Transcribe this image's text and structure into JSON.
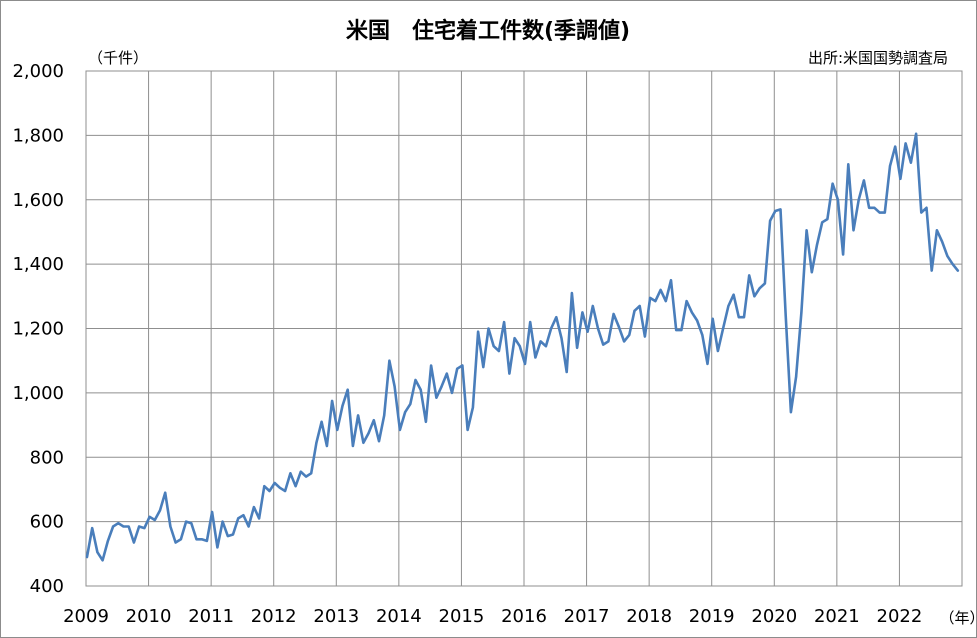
{
  "chart_data": {
    "type": "line",
    "title": "米国　住宅着工件数(季調値)",
    "unit_label": "（千件）",
    "source": "出所:米国国勢調査局",
    "x_unit": "（年）",
    "ylim": [
      400,
      2000
    ],
    "y_ticks": [
      "2,000",
      "1,800",
      "1,600",
      "1,400",
      "1,200",
      "1,000",
      "800",
      "600",
      "400"
    ],
    "x_ticks": [
      "2009",
      "2010",
      "2011",
      "2012",
      "2013",
      "2014",
      "2015",
      "2016",
      "2017",
      "2018",
      "2019",
      "2020",
      "2021",
      "2022"
    ],
    "grid": true,
    "series_color": "#4a7ebb",
    "series": [
      {
        "start": "2009-01",
        "frequency": "monthly",
        "values": [
          490,
          580,
          505,
          480,
          540,
          585,
          595,
          585,
          585,
          535,
          585,
          580,
          615,
          605,
          635,
          690,
          585,
          535,
          545,
          600,
          595,
          545,
          545,
          540,
          630,
          520,
          600,
          555,
          560,
          610,
          620,
          585,
          645,
          610,
          710,
          695,
          720,
          705,
          695,
          750,
          710,
          755,
          740,
          750,
          845,
          910,
          835,
          975,
          885,
          960,
          1010,
          835,
          930,
          845,
          875,
          915,
          850,
          930,
          1100,
          1020,
          885,
          940,
          965,
          1040,
          1010,
          910,
          1085,
          985,
          1020,
          1060,
          1000,
          1075,
          1085,
          885,
          955,
          1190,
          1080,
          1200,
          1145,
          1130,
          1220,
          1060,
          1170,
          1145,
          1090,
          1220,
          1110,
          1160,
          1145,
          1200,
          1235,
          1170,
          1065,
          1310,
          1140,
          1250,
          1190,
          1270,
          1200,
          1150,
          1160,
          1245,
          1205,
          1160,
          1180,
          1255,
          1270,
          1175,
          1295,
          1285,
          1320,
          1285,
          1350,
          1195,
          1195,
          1285,
          1250,
          1225,
          1180,
          1090,
          1230,
          1130,
          1200,
          1270,
          1305,
          1235,
          1235,
          1365,
          1300,
          1325,
          1340,
          1535,
          1565,
          1570,
          1240,
          940,
          1050,
          1250,
          1505,
          1375,
          1460,
          1530,
          1540,
          1650,
          1600,
          1430,
          1710,
          1505,
          1600,
          1660,
          1575,
          1575,
          1560,
          1560,
          1705,
          1765,
          1665,
          1775,
          1715,
          1805,
          1560,
          1575,
          1380,
          1505,
          1470,
          1425,
          1400,
          1380
        ]
      }
    ]
  }
}
